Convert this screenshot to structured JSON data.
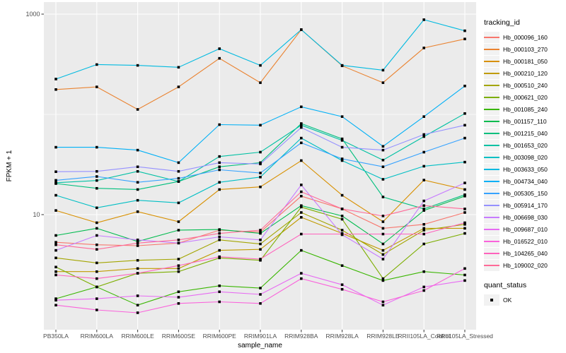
{
  "chart_data": {
    "type": "line",
    "x_axis": {
      "label": "sample_name",
      "categories": [
        "PB350LA",
        "RRIM600LA",
        "RRIM600LE",
        "RRIM600SE",
        "RRIM600PE",
        "RRIM901LA",
        "RRIM928BA",
        "RRIM928LA",
        "RRIM928LE",
        "RRII105LA_Control",
        "RRII105LA_Stressed"
      ]
    },
    "y_axis": {
      "label": "FPKM + 1",
      "scale": "log10",
      "tick_labels": [
        "1000",
        "10"
      ],
      "tick_values": [
        1000,
        10
      ],
      "minor_gridline_values": [
        100
      ]
    },
    "legend": {
      "tracking_title": "tracking_id",
      "quant_title": "quant_status",
      "quant_items": [
        {
          "label": "OK",
          "shape": "filled-square",
          "color": "#000000"
        }
      ]
    },
    "panel": {
      "background": "#EBEBEB",
      "gridline_color": "#FFFFFF",
      "tick_color": "#333333",
      "tick_label_color": "#4D4D4D",
      "point_color": "#000000",
      "point_shape": "square"
    },
    "series": [
      {
        "name": "Hb_000096_160",
        "color": "#F8766D",
        "values": [
          5.3,
          5.0,
          4.9,
          5.2,
          7.0,
          6.7,
          15.3,
          11.4,
          7.3,
          8.0,
          10.5
        ]
      },
      {
        "name": "Hb_000103_270",
        "color": "#EA8331",
        "values": [
          177,
          188,
          112,
          188,
          362,
          207,
          700,
          305,
          207,
          460,
          565
        ]
      },
      {
        "name": "Hb_000181_050",
        "color": "#D89000",
        "values": [
          11.0,
          8.3,
          10.7,
          8.5,
          17.8,
          18.9,
          34.6,
          15.6,
          8.5,
          22.1,
          17.8
        ]
      },
      {
        "name": "Hb_000210_120",
        "color": "#C09B00",
        "values": [
          2.7,
          2.7,
          2.9,
          2.9,
          4.4,
          4.5,
          9.4,
          6.5,
          4.4,
          7.3,
          7.3
        ]
      },
      {
        "name": "Hb_000510_240",
        "color": "#A3A500",
        "values": [
          3.7,
          3.3,
          3.5,
          3.6,
          5.6,
          5.1,
          10.5,
          7.0,
          4.0,
          7.0,
          8.0
        ]
      },
      {
        "name": "Hb_000621_020",
        "color": "#7CAE00",
        "values": [
          3.0,
          1.9,
          2.6,
          2.7,
          3.7,
          3.5,
          11.9,
          9.0,
          2.3,
          5.1,
          6.5
        ]
      },
      {
        "name": "Hb_001085_240",
        "color": "#39B600",
        "values": [
          1.45,
          1.9,
          1.25,
          1.7,
          1.95,
          1.85,
          4.4,
          3.1,
          2.2,
          2.7,
          2.5
        ]
      },
      {
        "name": "Hb_001157_110",
        "color": "#00BB4E",
        "values": [
          6.2,
          7.3,
          5.4,
          7.0,
          7.1,
          6.5,
          12.3,
          9.7,
          5.1,
          11.0,
          15.3
        ]
      },
      {
        "name": "Hb_001215_040",
        "color": "#00BF7D",
        "values": [
          20.4,
          18.3,
          17.8,
          21.4,
          30,
          33,
          81,
          57,
          15,
          11.4,
          15.8
        ]
      },
      {
        "name": "Hb_001653_020",
        "color": "#00C1A3",
        "values": [
          20.8,
          21.9,
          27,
          21.4,
          38,
          42,
          78,
          55,
          35,
          60,
          102
        ]
      },
      {
        "name": "Hb_003098_020",
        "color": "#00BFC4",
        "values": [
          15.6,
          11.7,
          13.9,
          13.1,
          21,
          23.7,
          58,
          34.6,
          22.5,
          30.4,
          33.4
        ]
      },
      {
        "name": "Hb_003633_050",
        "color": "#00BAE0",
        "values": [
          225,
          314,
          308,
          295,
          452,
          308,
          700,
          308,
          276,
          880,
          682
        ]
      },
      {
        "name": "Hb_004734_040",
        "color": "#00B0F6",
        "values": [
          47,
          47,
          44,
          33,
          79,
          78,
          119,
          95,
          48,
          95,
          192
        ]
      },
      {
        "name": "Hb_005305_150",
        "color": "#35A2FF",
        "values": [
          22,
          24,
          21,
          23,
          28,
          26,
          52,
          36,
          30,
          42,
          58
        ]
      },
      {
        "name": "Hb_005914_170",
        "color": "#9590FF",
        "values": [
          26.8,
          27,
          30,
          27,
          33,
          32,
          74,
          47,
          44,
          63,
          78
        ]
      },
      {
        "name": "Hb_006698_030",
        "color": "#C77CFF",
        "values": [
          4.4,
          6.2,
          5.6,
          5.2,
          6.0,
          5.6,
          19.8,
          6.3,
          3.6,
          13.7,
          20.7
        ]
      },
      {
        "name": "Hb_009687_010",
        "color": "#E76BF3",
        "values": [
          1.4,
          1.45,
          1.55,
          1.5,
          1.7,
          1.6,
          2.6,
          2.0,
          1.25,
          1.9,
          2.2
        ]
      },
      {
        "name": "Hb_016522_010",
        "color": "#FA62DB",
        "values": [
          1.25,
          1.12,
          1.05,
          1.3,
          1.35,
          1.3,
          2.3,
          1.8,
          1.35,
          1.75,
          2.9
        ]
      },
      {
        "name": "Hb_104265_040",
        "color": "#FF62BC",
        "values": [
          2.5,
          2.3,
          2.6,
          3.1,
          3.8,
          3.6,
          6.4,
          6.4,
          6.4,
          6.4,
          8.3
        ]
      },
      {
        "name": "Hb_109002_020",
        "color": "#FF6A98",
        "values": [
          5.0,
          4.5,
          5.2,
          5.6,
          6.5,
          7.0,
          16.9,
          11.4,
          9.7,
          12.3,
          11.4
        ]
      }
    ]
  }
}
